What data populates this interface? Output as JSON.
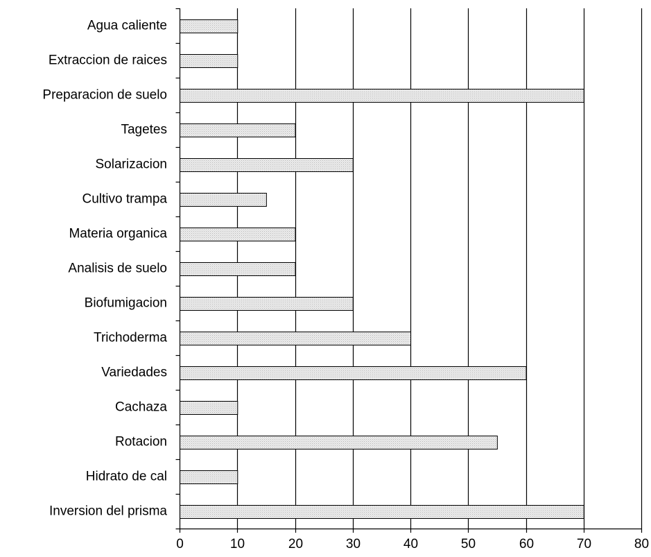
{
  "chart_data": {
    "type": "bar",
    "orientation": "horizontal",
    "categories": [
      "Agua caliente",
      "Extraccion de raices",
      "Preparacion de suelo",
      "Tagetes",
      "Solarizacion",
      "Cultivo trampa",
      "Materia organica",
      "Analisis de suelo",
      "Biofumigacion",
      "Trichoderma",
      "Variedades",
      "Cachaza",
      "Rotacion",
      "Hidrato de cal",
      "Inversion del prisma"
    ],
    "values": [
      10,
      10,
      70,
      20,
      30,
      15,
      20,
      20,
      30,
      40,
      60,
      10,
      55,
      10,
      70
    ],
    "xlim": [
      0,
      80
    ],
    "xticks": [
      0,
      10,
      20,
      30,
      40,
      50,
      60,
      70,
      80
    ],
    "title": "",
    "xlabel": "",
    "ylabel": "",
    "grid": "vertical",
    "legend": "none",
    "bar_fill": "#e4e4e4",
    "bar_stroke": "#000000"
  }
}
